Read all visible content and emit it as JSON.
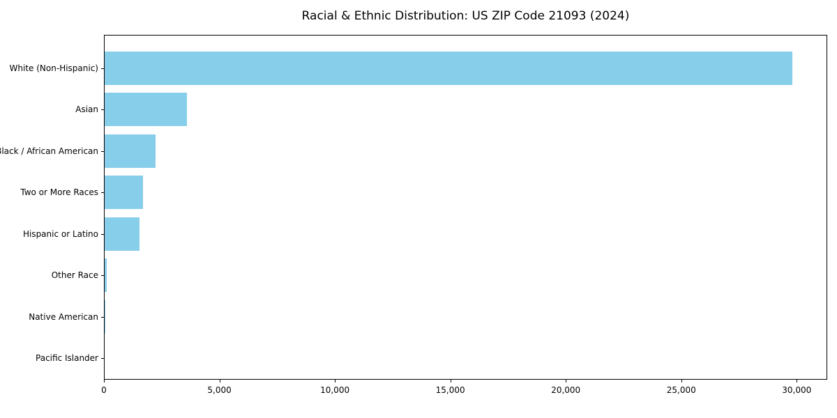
{
  "chart_data": {
    "type": "bar",
    "orientation": "horizontal",
    "title": "Racial & Ethnic Distribution: US ZIP Code 21093 (2024)",
    "categories": [
      "White (Non-Hispanic)",
      "Asian",
      "Black / African American",
      "Two or More Races",
      "Hispanic or Latino",
      "Other Race",
      "Native American",
      "Pacific Islander"
    ],
    "values": [
      29800,
      3600,
      2230,
      1690,
      1540,
      110,
      40,
      10
    ],
    "title_text_visible": true,
    "xlabel": "",
    "ylabel": "",
    "xlim": [
      0,
      31320
    ],
    "x_ticks": [
      0,
      5000,
      10000,
      15000,
      20000,
      25000,
      30000
    ],
    "x_tick_labels": [
      "0",
      "5,000",
      "10,000",
      "15,000",
      "20,000",
      "25,000",
      "30,000"
    ],
    "bar_color": "#87CEEB",
    "axis_color": "#000000",
    "grid": false,
    "legend_position": "none"
  }
}
